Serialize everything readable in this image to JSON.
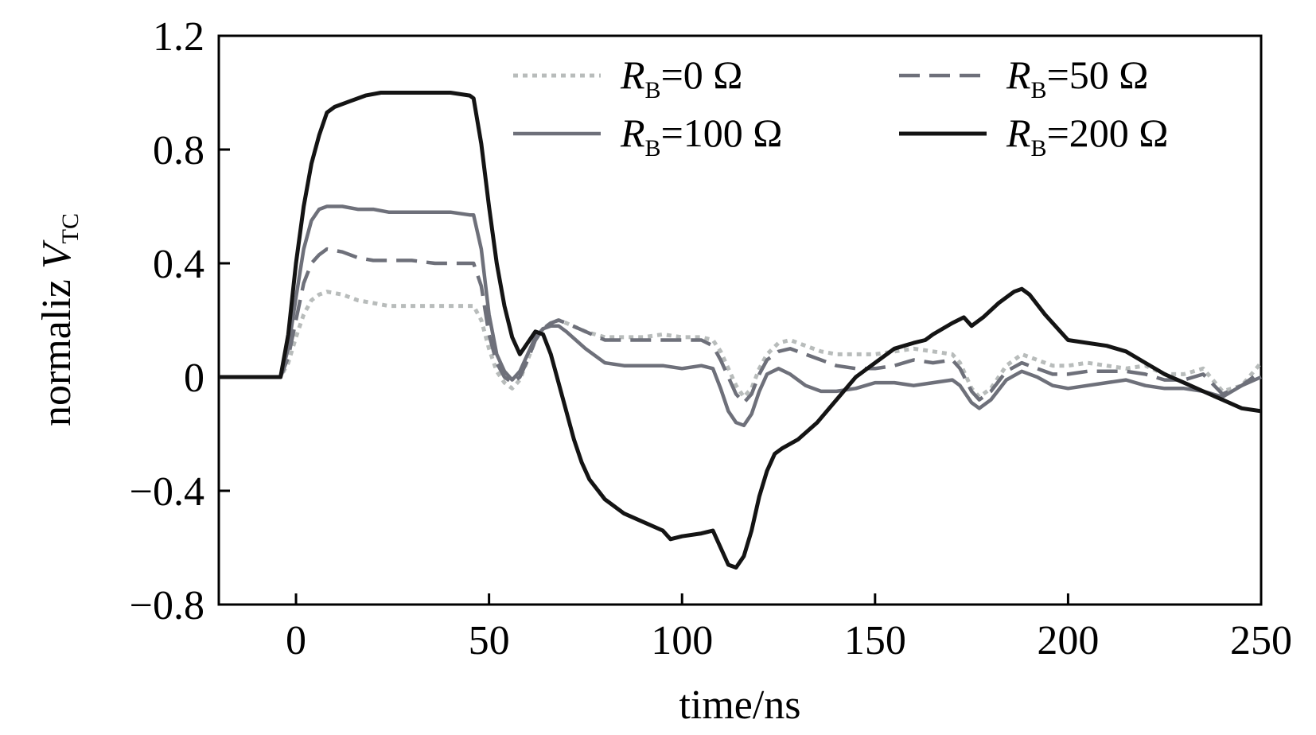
{
  "chart_data": {
    "type": "line",
    "xlabel": "time/ns",
    "ylabel": {
      "prefix": "normaliz ",
      "symbol": "V",
      "subscript": "TC"
    },
    "xlim": [
      -20,
      250
    ],
    "ylim": [
      -0.8,
      1.2
    ],
    "xticks": [
      0,
      50,
      100,
      150,
      200,
      250
    ],
    "yticks": [
      1.2,
      0.8,
      0.4,
      0,
      -0.4,
      -0.8
    ],
    "ytick_labels": [
      "1.2",
      "0.8",
      "0.4",
      "0",
      "−0.4",
      "−0.8"
    ],
    "grid": false,
    "legend_placement": "top-right",
    "series": [
      {
        "name": "R_B=0 Ω",
        "label": {
          "symbol": "R",
          "subscript": "B",
          "rest": "=0 Ω"
        },
        "color": "#b8bcbb",
        "style": "dotted",
        "x": [
          -20,
          -4,
          -2,
          0,
          2,
          4,
          6,
          8,
          12,
          16,
          20,
          24,
          30,
          36,
          40,
          45,
          46,
          48,
          50,
          52,
          54,
          56,
          58,
          60,
          62,
          64,
          66,
          68,
          70,
          75,
          80,
          85,
          90,
          95,
          100,
          105,
          108,
          110,
          112,
          114,
          116,
          118,
          120,
          122,
          125,
          128,
          132,
          136,
          140,
          145,
          150,
          155,
          160,
          165,
          170,
          172,
          175,
          177,
          180,
          184,
          188,
          192,
          196,
          200,
          205,
          210,
          215,
          220,
          225,
          230,
          235,
          240,
          245,
          250
        ],
        "y": [
          0,
          0,
          0.05,
          0.14,
          0.22,
          0.27,
          0.29,
          0.3,
          0.29,
          0.27,
          0.26,
          0.25,
          0.25,
          0.25,
          0.25,
          0.25,
          0.25,
          0.2,
          0.1,
          0.02,
          -0.02,
          -0.04,
          -0.01,
          0.06,
          0.13,
          0.17,
          0.19,
          0.2,
          0.19,
          0.16,
          0.14,
          0.14,
          0.14,
          0.15,
          0.14,
          0.14,
          0.13,
          0.09,
          0.03,
          -0.03,
          -0.07,
          -0.04,
          0.03,
          0.08,
          0.12,
          0.13,
          0.11,
          0.09,
          0.08,
          0.08,
          0.08,
          0.09,
          0.1,
          0.09,
          0.08,
          0.05,
          -0.04,
          -0.07,
          -0.04,
          0.04,
          0.08,
          0.06,
          0.04,
          0.04,
          0.05,
          0.04,
          0.03,
          0.04,
          0.01,
          0.01,
          0.03,
          -0.05,
          -0.03,
          0.05
        ]
      },
      {
        "name": "R_B=50 Ω",
        "label": {
          "symbol": "R",
          "subscript": "B",
          "rest": "=50 Ω"
        },
        "color": "#6e707a",
        "style": "dashed",
        "x": [
          -20,
          -4,
          -2,
          0,
          2,
          4,
          6,
          8,
          12,
          16,
          20,
          24,
          30,
          36,
          40,
          45,
          46,
          48,
          50,
          52,
          54,
          56,
          58,
          60,
          62,
          64,
          66,
          68,
          70,
          75,
          80,
          85,
          90,
          95,
          100,
          105,
          108,
          110,
          112,
          114,
          116,
          118,
          120,
          122,
          125,
          128,
          132,
          136,
          140,
          145,
          150,
          155,
          160,
          165,
          170,
          172,
          175,
          177,
          180,
          184,
          188,
          192,
          196,
          200,
          205,
          210,
          215,
          220,
          225,
          230,
          235,
          240,
          245,
          250
        ],
        "y": [
          0,
          0,
          0.07,
          0.2,
          0.33,
          0.4,
          0.43,
          0.45,
          0.44,
          0.42,
          0.41,
          0.41,
          0.41,
          0.4,
          0.4,
          0.4,
          0.4,
          0.32,
          0.15,
          0.05,
          0,
          -0.02,
          0,
          0.06,
          0.13,
          0.17,
          0.19,
          0.2,
          0.19,
          0.16,
          0.13,
          0.13,
          0.13,
          0.13,
          0.13,
          0.13,
          0.11,
          0.06,
          0,
          -0.06,
          -0.09,
          -0.06,
          0.01,
          0.06,
          0.09,
          0.1,
          0.08,
          0.06,
          0.04,
          0.03,
          0.03,
          0.04,
          0.06,
          0.05,
          0.06,
          0.03,
          -0.05,
          -0.08,
          -0.05,
          0.02,
          0.05,
          0.03,
          0.01,
          0.01,
          0.02,
          0.02,
          0.02,
          0.01,
          -0.01,
          -0.01,
          0.01,
          -0.06,
          -0.03,
          0.02
        ]
      },
      {
        "name": "R_B=100 Ω",
        "label": {
          "symbol": "R",
          "subscript": "B",
          "rest": "=100 Ω"
        },
        "color": "#6e707a",
        "style": "solid",
        "x": [
          -20,
          -4,
          -2,
          0,
          2,
          4,
          6,
          8,
          12,
          16,
          20,
          24,
          30,
          36,
          40,
          45,
          46,
          48,
          50,
          52,
          54,
          56,
          58,
          60,
          62,
          64,
          66,
          68,
          70,
          75,
          80,
          85,
          90,
          95,
          100,
          105,
          108,
          110,
          112,
          114,
          116,
          118,
          120,
          122,
          125,
          128,
          132,
          136,
          140,
          145,
          150,
          155,
          160,
          165,
          170,
          172,
          175,
          177,
          180,
          184,
          188,
          192,
          196,
          200,
          205,
          210,
          215,
          220,
          225,
          230,
          235,
          240,
          245,
          250
        ],
        "y": [
          0,
          0,
          0.1,
          0.28,
          0.45,
          0.55,
          0.59,
          0.6,
          0.6,
          0.59,
          0.59,
          0.58,
          0.58,
          0.58,
          0.58,
          0.57,
          0.57,
          0.45,
          0.22,
          0.08,
          0.02,
          -0.01,
          0.02,
          0.08,
          0.14,
          0.17,
          0.18,
          0.18,
          0.16,
          0.1,
          0.05,
          0.04,
          0.04,
          0.04,
          0.03,
          0.04,
          0.03,
          -0.04,
          -0.12,
          -0.16,
          -0.17,
          -0.13,
          -0.05,
          0.01,
          0.03,
          0.01,
          -0.03,
          -0.05,
          -0.05,
          -0.04,
          -0.02,
          -0.02,
          -0.03,
          -0.02,
          -0.01,
          -0.03,
          -0.09,
          -0.11,
          -0.08,
          -0.01,
          0.02,
          0,
          -0.03,
          -0.04,
          -0.03,
          -0.02,
          -0.01,
          -0.03,
          -0.04,
          -0.04,
          -0.05,
          -0.07,
          -0.03,
          0
        ]
      },
      {
        "name": "R_B=200 Ω",
        "label": {
          "symbol": "R",
          "subscript": "B",
          "rest": "=200 Ω"
        },
        "color": "#141414",
        "style": "solid",
        "x": [
          -20,
          -4,
          -2,
          0,
          2,
          4,
          6,
          8,
          10,
          14,
          18,
          22,
          26,
          30,
          35,
          40,
          45,
          46,
          48,
          50,
          52,
          54,
          56,
          58,
          60,
          62,
          64,
          66,
          68,
          70,
          72,
          74,
          76,
          80,
          85,
          90,
          95,
          97,
          100,
          105,
          108,
          110,
          112,
          114,
          116,
          118,
          120,
          122,
          124,
          126,
          130,
          135,
          140,
          145,
          150,
          155,
          160,
          163,
          165,
          170,
          173,
          175,
          178,
          182,
          186,
          188,
          190,
          194,
          198,
          200,
          205,
          210,
          215,
          220,
          225,
          230,
          235,
          240,
          245,
          250
        ],
        "y": [
          0,
          0,
          0.15,
          0.4,
          0.6,
          0.75,
          0.85,
          0.93,
          0.95,
          0.97,
          0.99,
          1.0,
          1.0,
          1.0,
          1.0,
          1.0,
          0.99,
          0.98,
          0.82,
          0.6,
          0.4,
          0.25,
          0.14,
          0.08,
          0.12,
          0.16,
          0.15,
          0.08,
          -0.02,
          -0.12,
          -0.22,
          -0.3,
          -0.36,
          -0.43,
          -0.48,
          -0.51,
          -0.54,
          -0.57,
          -0.56,
          -0.55,
          -0.54,
          -0.6,
          -0.66,
          -0.67,
          -0.63,
          -0.54,
          -0.42,
          -0.33,
          -0.27,
          -0.25,
          -0.22,
          -0.16,
          -0.08,
          0,
          0.05,
          0.1,
          0.12,
          0.13,
          0.15,
          0.19,
          0.21,
          0.18,
          0.21,
          0.26,
          0.3,
          0.31,
          0.29,
          0.22,
          0.16,
          0.13,
          0.12,
          0.11,
          0.09,
          0.05,
          0.01,
          -0.02,
          -0.05,
          -0.08,
          -0.11,
          -0.12
        ]
      }
    ]
  }
}
